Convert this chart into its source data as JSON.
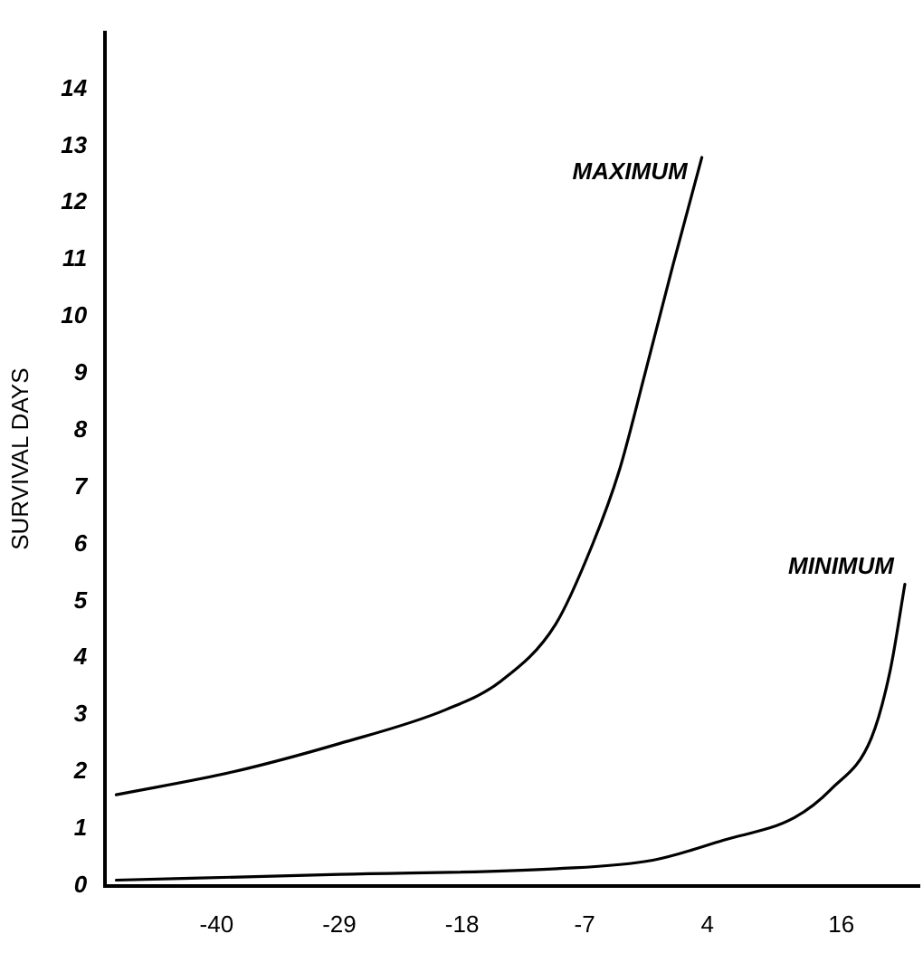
{
  "chart_data": {
    "type": "line",
    "ylabel": "SURVIVAL DAYS",
    "xlim": [
      -50,
      23
    ],
    "xticks": [
      -40,
      -29,
      -18,
      -7,
      4,
      16
    ],
    "ylim": [
      0,
      15
    ],
    "yticks": [
      0,
      1,
      2,
      3,
      4,
      5,
      6,
      7,
      8,
      9,
      10,
      11,
      12,
      13,
      14
    ],
    "grid": false,
    "legend": false,
    "marker": "none",
    "line_style": "solid",
    "series": [
      {
        "name": "MAXIMUM",
        "color": "#000000",
        "x": [
          -49,
          -38.6,
          -29,
          -19.4,
          -14.5,
          -9.6,
          -6.3,
          -3.9,
          -1.6,
          0.9,
          3.5
        ],
        "values": [
          1.6,
          2.0,
          2.5,
          3.1,
          3.6,
          4.6,
          6.0,
          7.3,
          9.0,
          10.9,
          12.8
        ]
      },
      {
        "name": "MINIMUM",
        "color": "#000000",
        "x": [
          -49,
          -29,
          -9.5,
          -0.9,
          5.4,
          11.8,
          15.1,
          18.7,
          20.4,
          21.7
        ],
        "values": [
          0.1,
          0.2,
          0.3,
          0.45,
          0.8,
          1.2,
          1.7,
          2.6,
          3.8,
          5.3
        ]
      }
    ]
  }
}
